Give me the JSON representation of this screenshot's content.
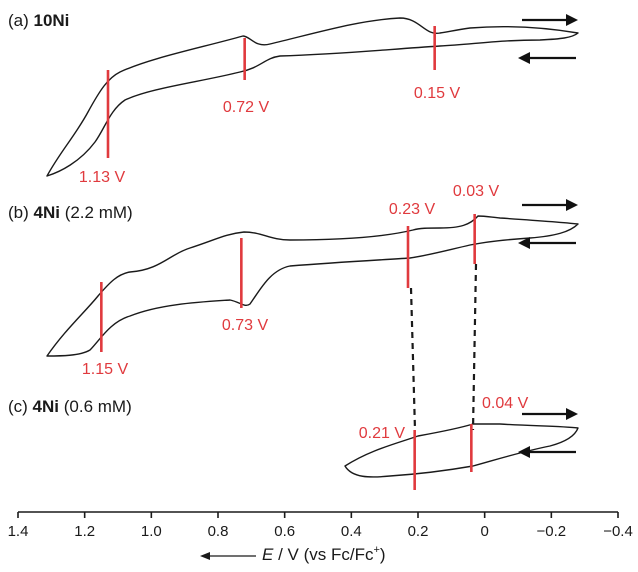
{
  "chart_data": {
    "type": "line",
    "xlabel_parts": {
      "e": "E",
      "rest": " / V (vs Fc/Fc",
      "sup": "+",
      "end": ")"
    },
    "xlim": [
      1.4,
      -0.4
    ],
    "x_ticks": [
      "1.4",
      "1.2",
      "1.0",
      "0.8",
      "0.6",
      "0.4",
      "0.2",
      "0",
      "−0.2",
      "−0.4"
    ],
    "x_tick_values": [
      1.4,
      1.2,
      1.0,
      0.8,
      0.6,
      0.4,
      0.2,
      0.0,
      -0.2,
      -0.4
    ],
    "panels": [
      {
        "id": "a",
        "label_prefix": "(a) ",
        "label_bold": "10Ni",
        "label_suffix": "",
        "x_range": [
          1.34,
          -0.3
        ],
        "peaks": [
          {
            "v": 1.13,
            "text": "1.13 V"
          },
          {
            "v": 0.72,
            "text": "0.72 V"
          },
          {
            "v": 0.15,
            "text": "0.15 V"
          }
        ]
      },
      {
        "id": "b",
        "label_prefix": "(b) ",
        "label_bold": "4Ni",
        "label_suffix": " (2.2 mM)",
        "x_range": [
          1.34,
          -0.3
        ],
        "peaks": [
          {
            "v": 1.15,
            "text": "1.15 V"
          },
          {
            "v": 0.73,
            "text": "0.73 V"
          },
          {
            "v": 0.23,
            "text": "0.23 V"
          },
          {
            "v": 0.03,
            "text": "0.03 V"
          }
        ]
      },
      {
        "id": "c",
        "label_prefix": "(c) ",
        "label_bold": "4Ni",
        "label_suffix": " (0.6 mM)",
        "x_range": [
          0.44,
          -0.3
        ],
        "peaks": [
          {
            "v": 0.21,
            "text": "0.21 V"
          },
          {
            "v": 0.04,
            "text": "0.04 V"
          }
        ]
      }
    ]
  }
}
